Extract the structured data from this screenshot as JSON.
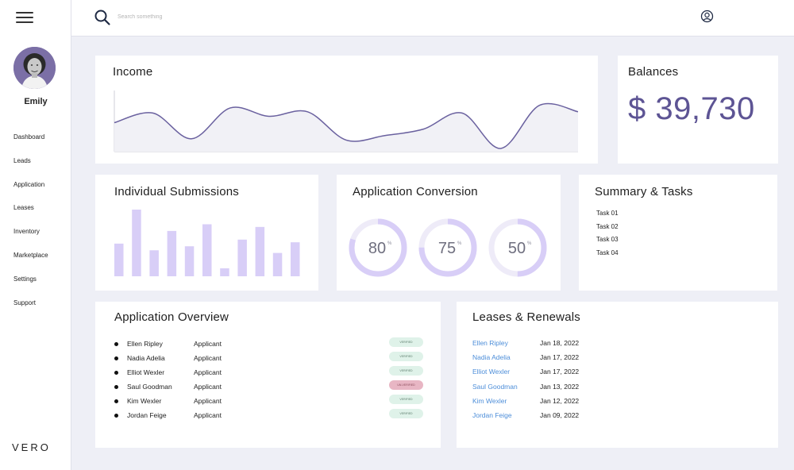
{
  "sidebar": {
    "user_name": "Emily",
    "nav": [
      "Dashboard",
      "Leads",
      "Application",
      "Leases",
      "Inventory",
      "Marketplace",
      "Settings",
      "Support"
    ],
    "brand": "VERO"
  },
  "topbar": {
    "search_placeholder": "Search something",
    "icons": [
      "menu-icon",
      "search-icon",
      "user-circle-icon"
    ]
  },
  "income": {
    "title": "Income",
    "series": [
      0.45,
      0.6,
      0.2,
      0.68,
      0.55,
      0.62,
      0.18,
      0.25,
      0.35,
      0.6,
      0.05,
      0.72,
      0.62
    ],
    "line_color": "#6a619f"
  },
  "balances": {
    "title": "Balances",
    "value": "$ 39,730",
    "value_color": "#5d5494"
  },
  "submissions": {
    "title": "Individual Submissions",
    "bars": [
      0.49,
      1.0,
      0.39,
      0.68,
      0.45,
      0.78,
      0.12,
      0.55,
      0.74,
      0.35,
      0.51
    ],
    "bar_color": "#d8cef7"
  },
  "conversion": {
    "title": "Application Conversion",
    "gauges": [
      {
        "value": 80,
        "label": "80",
        "unit": "%"
      },
      {
        "value": 75,
        "label": "75",
        "unit": "%"
      },
      {
        "value": 50,
        "label": "50",
        "unit": "%"
      }
    ],
    "fill_color": "#d8cef7",
    "track_color": "#eeebf8"
  },
  "tasks": {
    "title": "Summary & Tasks",
    "items": [
      "Task 01",
      "Task 02",
      "Task 03",
      "Task 04"
    ]
  },
  "overview": {
    "title": "Application Overview",
    "rows": [
      {
        "name": "Ellen Ripley",
        "role": "Applicant",
        "status": "VERIFIED",
        "verified": true
      },
      {
        "name": "Nadia Adelia",
        "role": "Applicant",
        "status": "VERIFIED",
        "verified": true
      },
      {
        "name": "Elliot Wexler",
        "role": "Applicant",
        "status": "VERIFIED",
        "verified": true
      },
      {
        "name": "Saul Goodman",
        "role": "Applicant",
        "status": "UN-VERIFIED",
        "verified": false
      },
      {
        "name": "Kim Wexler",
        "role": "Applicant",
        "status": "VERIFIED",
        "verified": true
      },
      {
        "name": "Jordan Feige",
        "role": "Applicant",
        "status": "VERIFIED",
        "verified": true
      }
    ]
  },
  "leases": {
    "title": "Leases & Renewals",
    "rows": [
      {
        "name": "Ellen Ripley",
        "date": "Jan 18, 2022"
      },
      {
        "name": "Nadia Adelia",
        "date": "Jan 17, 2022"
      },
      {
        "name": "Elliot Wexler",
        "date": "Jan 17, 2022"
      },
      {
        "name": "Saul Goodman",
        "date": "Jan 13, 2022"
      },
      {
        "name": "Kim Wexler",
        "date": "Jan 12, 2022"
      },
      {
        "name": "Jordan Feige",
        "date": "Jan 09, 2022"
      }
    ]
  }
}
